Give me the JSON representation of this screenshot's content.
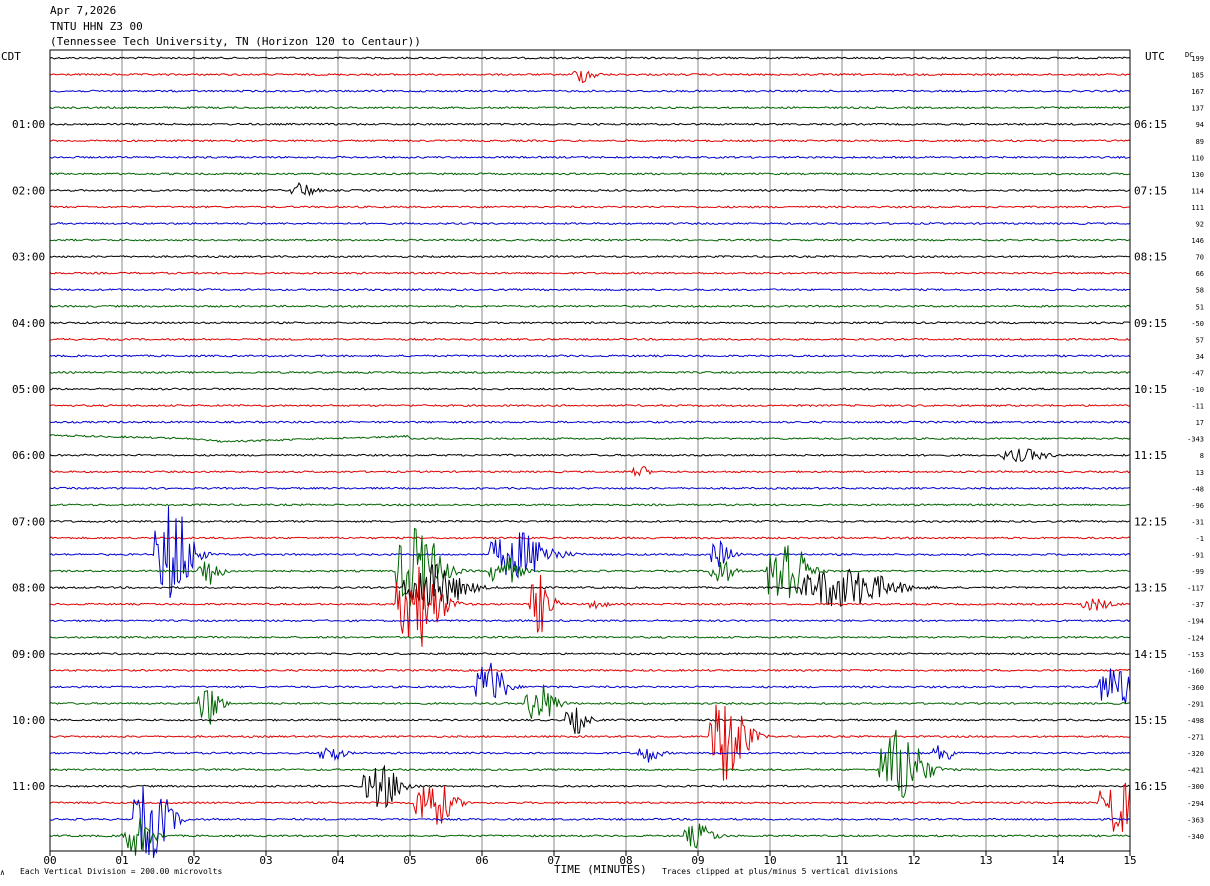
{
  "header": {
    "date": "Apr 7,2026",
    "station": "TNTU HHN Z3 00",
    "location": "(Tennessee Tech University, TN (Horizon 120 to Centaur))"
  },
  "left_timezone_label": "CDT",
  "right_timezone_label": "UTC",
  "dc_label": "DC",
  "footer": {
    "scale_note": "Each Vertical Division =  200.00 microvolts",
    "clip_note": "Traces clipped at plus/minus 5 vertical divisions",
    "corner_mark": "∧"
  },
  "chart_data": {
    "type": "line",
    "title": "",
    "xlabel": "TIME (MINUTES)",
    "xlim": [
      0,
      15
    ],
    "x_ticks": [
      "00",
      "01",
      "02",
      "03",
      "04",
      "05",
      "06",
      "07",
      "08",
      "09",
      "10",
      "11",
      "12",
      "13",
      "14",
      "15"
    ],
    "trace_colors": [
      "#000000",
      "#e00000",
      "#0000d0",
      "#006400"
    ],
    "trace_minutes": 15,
    "left_hour_labels": [
      {
        "row": 4,
        "text": "01:00"
      },
      {
        "row": 8,
        "text": "02:00"
      },
      {
        "row": 12,
        "text": "03:00"
      },
      {
        "row": 16,
        "text": "04:00"
      },
      {
        "row": 20,
        "text": "05:00"
      },
      {
        "row": 24,
        "text": "06:00"
      },
      {
        "row": 28,
        "text": "07:00"
      },
      {
        "row": 32,
        "text": "08:00"
      },
      {
        "row": 36,
        "text": "09:00"
      },
      {
        "row": 40,
        "text": "10:00"
      },
      {
        "row": 44,
        "text": "11:00"
      }
    ],
    "right_hour_labels": [
      {
        "row": 4,
        "text": "06:15"
      },
      {
        "row": 8,
        "text": "07:15"
      },
      {
        "row": 12,
        "text": "08:15"
      },
      {
        "row": 16,
        "text": "09:15"
      },
      {
        "row": 20,
        "text": "10:15"
      },
      {
        "row": 24,
        "text": "11:15"
      },
      {
        "row": 28,
        "text": "12:15"
      },
      {
        "row": 32,
        "text": "13:15"
      },
      {
        "row": 36,
        "text": "14:15"
      },
      {
        "row": 40,
        "text": "15:15"
      },
      {
        "row": 44,
        "text": "16:15"
      }
    ],
    "dc_offsets": [
      "199",
      "185",
      "167",
      "137",
      "94",
      "89",
      "110",
      "130",
      "114",
      "111",
      "92",
      "146",
      "70",
      "66",
      "58",
      "51",
      "-50",
      "57",
      "34",
      "-47",
      "-10",
      "-11",
      "17",
      "-343",
      "8",
      "13",
      "-48",
      "-96",
      "-31",
      "-1",
      "-91",
      "-99",
      "-117",
      "-37",
      "-194",
      "-124",
      "-153",
      "-160",
      "-360",
      "-291",
      "-498",
      "-271",
      "-320",
      "-421",
      "-300",
      "-294",
      "-363",
      "-340"
    ],
    "events": [
      {
        "row": 1,
        "minute": 7.4,
        "duration": 0.3,
        "amplitude": 0.5
      },
      {
        "row": 8,
        "minute": 3.5,
        "duration": 0.3,
        "amplitude": 0.5
      },
      {
        "row": 25,
        "minute": 8.2,
        "duration": 0.2,
        "amplitude": 0.4
      },
      {
        "row": 24,
        "minute": 13.5,
        "duration": 0.6,
        "amplitude": 0.4
      },
      {
        "row": 30,
        "minute": 1.7,
        "duration": 0.5,
        "amplitude": 3.5
      },
      {
        "row": 31,
        "minute": 2.2,
        "duration": 0.3,
        "amplitude": 1.0
      },
      {
        "row": 30,
        "minute": 6.5,
        "duration": 0.8,
        "amplitude": 1.6
      },
      {
        "row": 31,
        "minute": 6.3,
        "duration": 0.4,
        "amplitude": 1.0
      },
      {
        "row": 31,
        "minute": 5.1,
        "duration": 0.6,
        "amplitude": 3.0
      },
      {
        "row": 32,
        "minute": 5.3,
        "duration": 0.8,
        "amplitude": 1.6
      },
      {
        "row": 33,
        "minute": 5.1,
        "duration": 0.6,
        "amplitude": 3.0
      },
      {
        "row": 33,
        "minute": 6.8,
        "duration": 0.3,
        "amplitude": 2.0
      },
      {
        "row": 33,
        "minute": 7.6,
        "duration": 0.2,
        "amplitude": 0.4
      },
      {
        "row": 30,
        "minute": 9.3,
        "duration": 0.3,
        "amplitude": 0.9
      },
      {
        "row": 31,
        "minute": 9.3,
        "duration": 0.3,
        "amplitude": 1.0
      },
      {
        "row": 31,
        "minute": 10.2,
        "duration": 0.5,
        "amplitude": 3.0
      },
      {
        "row": 32,
        "minute": 11.0,
        "duration": 1.2,
        "amplitude": 1.4
      },
      {
        "row": 33,
        "minute": 14.5,
        "duration": 0.4,
        "amplitude": 0.4
      },
      {
        "row": 38,
        "minute": 6.1,
        "duration": 0.4,
        "amplitude": 1.8
      },
      {
        "row": 39,
        "minute": 6.8,
        "duration": 0.4,
        "amplitude": 1.4
      },
      {
        "row": 39,
        "minute": 2.2,
        "duration": 0.3,
        "amplitude": 1.5
      },
      {
        "row": 40,
        "minute": 7.3,
        "duration": 0.3,
        "amplitude": 0.9
      },
      {
        "row": 38,
        "minute": 14.8,
        "duration": 0.5,
        "amplitude": 1.5
      },
      {
        "row": 41,
        "minute": 9.4,
        "duration": 0.5,
        "amplitude": 3.2
      },
      {
        "row": 42,
        "minute": 3.9,
        "duration": 0.3,
        "amplitude": 0.6
      },
      {
        "row": 42,
        "minute": 8.3,
        "duration": 0.3,
        "amplitude": 0.6
      },
      {
        "row": 42,
        "minute": 12.4,
        "duration": 0.3,
        "amplitude": 0.6
      },
      {
        "row": 43,
        "minute": 11.8,
        "duration": 0.6,
        "amplitude": 2.8
      },
      {
        "row": 44,
        "minute": 4.6,
        "duration": 0.5,
        "amplitude": 1.5
      },
      {
        "row": 45,
        "minute": 5.3,
        "duration": 0.5,
        "amplitude": 1.8
      },
      {
        "row": 45,
        "minute": 14.8,
        "duration": 0.5,
        "amplitude": 2.2
      },
      {
        "row": 46,
        "minute": 1.4,
        "duration": 0.5,
        "amplitude": 2.6
      },
      {
        "row": 47,
        "minute": 1.2,
        "duration": 0.4,
        "amplitude": 1.3
      },
      {
        "row": 47,
        "minute": 9.0,
        "duration": 0.4,
        "amplitude": 0.8
      }
    ]
  }
}
